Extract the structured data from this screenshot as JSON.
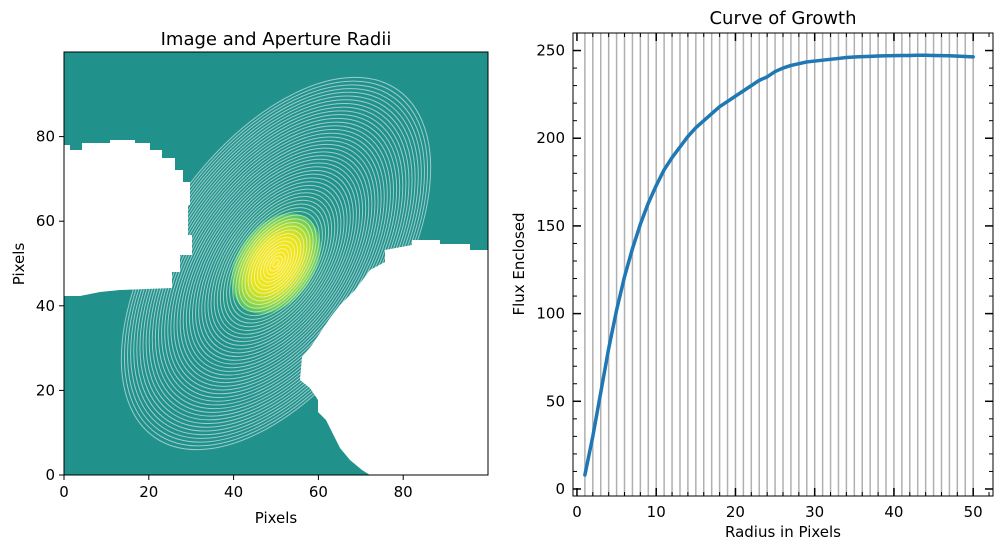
{
  "chart_data": [
    {
      "type": "heatmap",
      "title": "Image and Aperture Radii",
      "xlabel": "Pixels",
      "ylabel": "Pixels",
      "xlim": [
        0,
        100
      ],
      "ylim": [
        0,
        100
      ],
      "xticks": [
        "0",
        "20",
        "40",
        "60",
        "80"
      ],
      "yticks": [
        "0",
        "20",
        "40",
        "60",
        "80"
      ],
      "xtick_values": [
        0,
        20,
        40,
        60,
        80
      ],
      "ytick_values": [
        0,
        20,
        40,
        60,
        80
      ],
      "colormap": "viridis",
      "background_color": "#21918c",
      "peak_color": "#fde725",
      "aperture_color": "#ffffff",
      "masked_color": "#ffffff",
      "source": {
        "center": [
          50,
          50
        ],
        "semi_major": 13,
        "semi_minor": 9,
        "angle_deg": 55
      },
      "apertures": {
        "center": [
          50,
          50
        ],
        "count": 50,
        "min_radius": 1,
        "max_radius": 50,
        "ellipticity": 0.55,
        "angle_deg": 55
      }
    },
    {
      "type": "line",
      "title": "Curve of Growth",
      "xlabel": "Radius in Pixels",
      "ylabel": "Flux Enclosed",
      "xlim": [
        -0.5,
        52.5
      ],
      "ylim": [
        -4,
        260
      ],
      "xticks": [
        "0",
        "10",
        "20",
        "30",
        "40",
        "50"
      ],
      "yticks": [
        "0",
        "50",
        "100",
        "150",
        "200",
        "250"
      ],
      "xtick_values": [
        0,
        10,
        20,
        30,
        40,
        50
      ],
      "ytick_values": [
        0,
        50,
        100,
        150,
        200,
        250
      ],
      "vlines": [
        1,
        2,
        3,
        4,
        5,
        6,
        7,
        8,
        9,
        10,
        11,
        12,
        13,
        14,
        15,
        16,
        17,
        18,
        19,
        20,
        21,
        22,
        23,
        24,
        25,
        26,
        27,
        28,
        29,
        30,
        31,
        32,
        33,
        34,
        35,
        36,
        37,
        38,
        39,
        40,
        41,
        42,
        43,
        44,
        45,
        46,
        47,
        48,
        49,
        50
      ],
      "vline_color": "#b0b0b0",
      "series": [
        {
          "color": "#1f77b4",
          "x": [
            1,
            2,
            3,
            4,
            5,
            6,
            7,
            8,
            9,
            10,
            11,
            12,
            13,
            14,
            15,
            16,
            17,
            18,
            19,
            20,
            21,
            22,
            23,
            24,
            25,
            26,
            27,
            28,
            29,
            30,
            31,
            32,
            33,
            34,
            35,
            36,
            37,
            38,
            39,
            40,
            41,
            42,
            43,
            44,
            45,
            46,
            47,
            48,
            49,
            50
          ],
          "y": [
            8,
            30,
            55,
            80,
            102,
            121,
            137,
            151,
            163,
            173,
            182,
            189,
            195,
            201,
            206,
            210,
            214,
            218,
            221,
            224,
            227,
            230,
            233,
            235,
            238,
            240,
            241.5,
            242.5,
            243.5,
            244,
            244.5,
            245,
            245.5,
            246,
            246.3,
            246.5,
            246.7,
            246.9,
            247,
            247.1,
            247.2,
            247.2,
            247.3,
            247.3,
            247.2,
            247.1,
            247,
            246.8,
            246.6,
            246.4
          ]
        }
      ]
    }
  ]
}
